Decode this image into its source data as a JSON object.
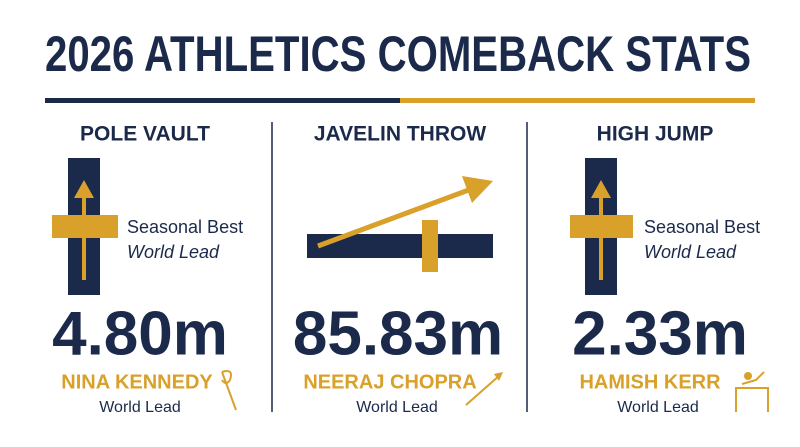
{
  "header": {
    "title": "2026 ATHLETICS COMEBACK STATS"
  },
  "panels": [
    {
      "event": "POLE VAULT",
      "note": [
        "Seasonal Best",
        "World Lead"
      ],
      "mark": "4.80m",
      "athlete": "NINA KENNEDY",
      "status": "World Lead"
    },
    {
      "event": "JAVELIN THROW",
      "mark": "85.83m",
      "athlete": "NEERAJ CHOPRA",
      "status": "World Lead"
    },
    {
      "event": "HIGH JUMP",
      "note": [
        "Seasonal Best",
        "World Lead"
      ],
      "mark": "2.33m",
      "athlete": "HAMISH KERR",
      "status": "World Lead"
    }
  ]
}
